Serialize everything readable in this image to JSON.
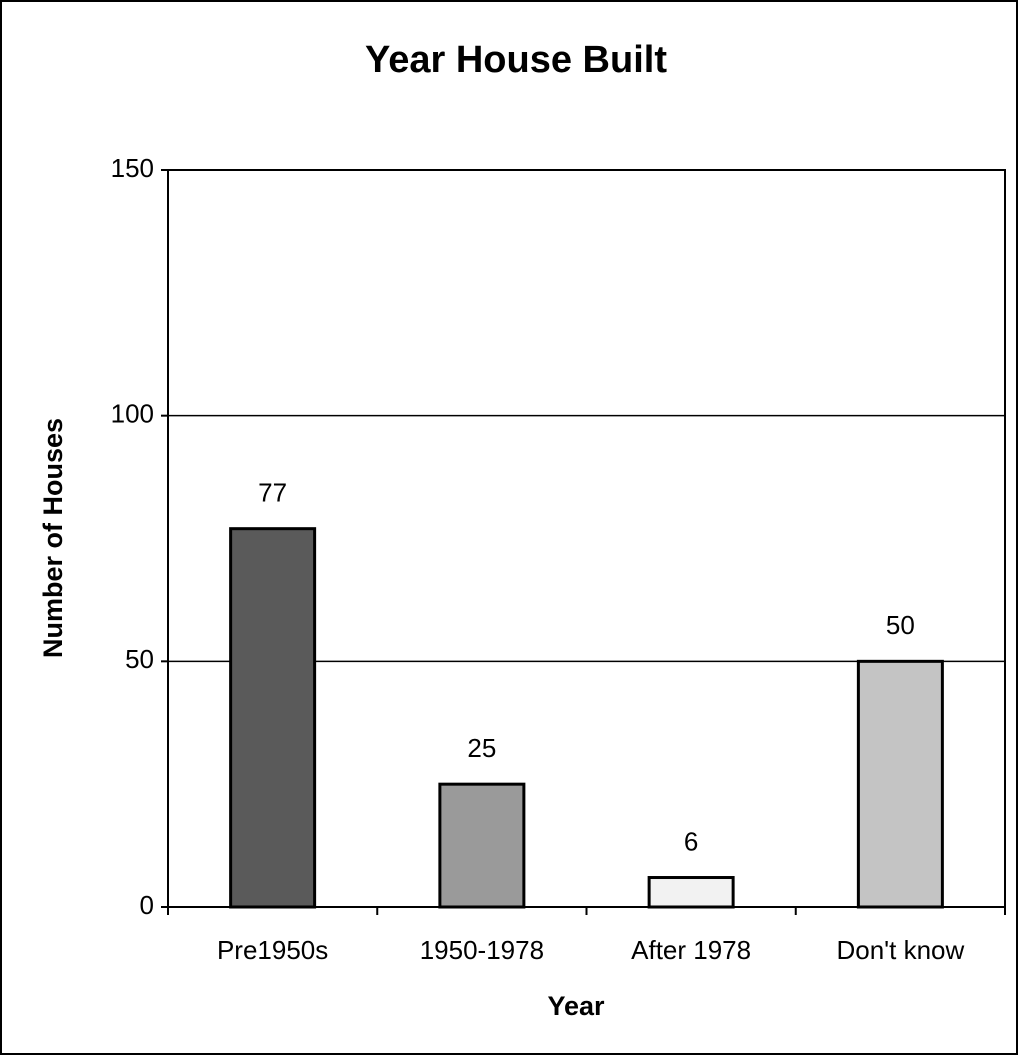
{
  "chart_data": {
    "type": "bar",
    "title": "Year House Built",
    "x_label": "Year",
    "y_label": "Number of Houses",
    "categories": [
      "Pre1950s",
      "1950-1978",
      "After 1978",
      "Don't know"
    ],
    "values": [
      77,
      25,
      6,
      50
    ],
    "colors": [
      "#5a5a5a",
      "#9a9a9a",
      "#f2f2f2",
      "#c4c4c4"
    ],
    "ylim": [
      0,
      150
    ],
    "yticks": [
      0,
      50,
      100,
      150
    ],
    "grid": true
  }
}
